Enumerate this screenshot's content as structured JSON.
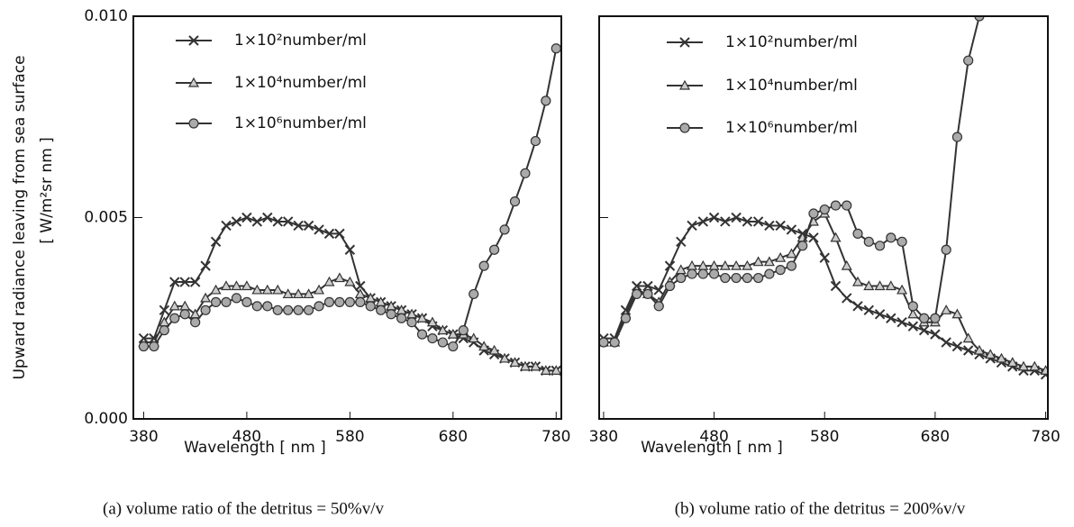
{
  "chart_data": [
    {
      "type": "line",
      "ylabel": "Upward radiance leaving from sea surface",
      "ylabel_unit": "[ W/m²sr nm ]",
      "xlabel": "Wavelength [ nm ]",
      "caption": "(a) volume ratio of the detritus = 50%v/v",
      "x": [
        380,
        390,
        400,
        410,
        420,
        430,
        440,
        450,
        460,
        470,
        480,
        490,
        500,
        510,
        520,
        530,
        540,
        550,
        560,
        570,
        580,
        590,
        600,
        610,
        620,
        630,
        640,
        650,
        660,
        670,
        680,
        690,
        700,
        710,
        720,
        730,
        740,
        750,
        760,
        770,
        780
      ],
      "xlim": [
        370,
        785
      ],
      "xticks": [
        380,
        480,
        580,
        680,
        780
      ],
      "ylim": [
        0,
        0.01
      ],
      "yticks": [
        {
          "value": 0,
          "label": "0.000"
        },
        {
          "value": 0.005,
          "label": "0.005"
        },
        {
          "value": 0.01,
          "label": "0.010"
        }
      ],
      "series": [
        {
          "name": "1×10²number/ml",
          "color": "#333333",
          "marker": "cross",
          "values": [
            0.002,
            0.002,
            0.0027,
            0.0034,
            0.0034,
            0.0034,
            0.0038,
            0.0044,
            0.0048,
            0.0049,
            0.005,
            0.0049,
            0.005,
            0.0049,
            0.0049,
            0.0048,
            0.0048,
            0.0047,
            0.0046,
            0.0046,
            0.0042,
            0.0033,
            0.003,
            0.0029,
            0.0028,
            0.0027,
            0.0026,
            0.0025,
            0.0023,
            0.0022,
            0.0021,
            0.002,
            0.0019,
            0.0017,
            0.0016,
            0.0015,
            0.0014,
            0.0013,
            0.0013,
            0.0012,
            0.0012
          ]
        },
        {
          "name": "1×10⁴number/ml",
          "color": "#333333",
          "marker": "triangle",
          "values": [
            0.0019,
            0.0019,
            0.0024,
            0.0028,
            0.0028,
            0.0026,
            0.003,
            0.0032,
            0.0033,
            0.0033,
            0.0033,
            0.0032,
            0.0032,
            0.0032,
            0.0031,
            0.0031,
            0.0031,
            0.0032,
            0.0034,
            0.0035,
            0.0034,
            0.0031,
            0.003,
            0.0029,
            0.0028,
            0.0027,
            0.0026,
            0.0025,
            0.0024,
            0.0022,
            0.0021,
            0.0021,
            0.002,
            0.0018,
            0.0017,
            0.0015,
            0.0014,
            0.0013,
            0.0013,
            0.0012,
            0.0012
          ]
        },
        {
          "name": "1×10⁶number/ml",
          "color": "#333333",
          "marker": "circle",
          "values": [
            0.0018,
            0.0018,
            0.0022,
            0.0025,
            0.0026,
            0.0024,
            0.0027,
            0.0029,
            0.0029,
            0.003,
            0.0029,
            0.0028,
            0.0028,
            0.0027,
            0.0027,
            0.0027,
            0.0027,
            0.0028,
            0.0029,
            0.0029,
            0.0029,
            0.0029,
            0.0028,
            0.0027,
            0.0026,
            0.0025,
            0.0024,
            0.0021,
            0.002,
            0.0019,
            0.0018,
            0.0022,
            0.0031,
            0.0038,
            0.0042,
            0.0047,
            0.0054,
            0.0061,
            0.0069,
            0.0079,
            0.0092
          ]
        }
      ]
    },
    {
      "type": "line",
      "xlabel": "Wavelength [ nm ]",
      "caption": "(b) volume ratio of the detritus = 200%v/v",
      "x": [
        380,
        390,
        400,
        410,
        420,
        430,
        440,
        450,
        460,
        470,
        480,
        490,
        500,
        510,
        520,
        530,
        540,
        550,
        560,
        570,
        580,
        590,
        600,
        610,
        620,
        630,
        640,
        650,
        660,
        670,
        680,
        690,
        700,
        710,
        720,
        730,
        740,
        750,
        760,
        770,
        780
      ],
      "xlim": [
        376,
        782
      ],
      "xticks": [
        380,
        480,
        580,
        680,
        780
      ],
      "ylim": [
        0,
        0.01
      ],
      "yticks": [
        0,
        0.005,
        0.01
      ],
      "series": [
        {
          "name": "1×10²number/ml",
          "color": "#333333",
          "marker": "cross",
          "values": [
            0.002,
            0.002,
            0.0027,
            0.0033,
            0.0033,
            0.0032,
            0.0038,
            0.0044,
            0.0048,
            0.0049,
            0.005,
            0.0049,
            0.005,
            0.0049,
            0.0049,
            0.0048,
            0.0048,
            0.0047,
            0.0046,
            0.0045,
            0.004,
            0.0033,
            0.003,
            0.0028,
            0.0027,
            0.0026,
            0.0025,
            0.0024,
            0.0023,
            0.0022,
            0.0021,
            0.0019,
            0.0018,
            0.0017,
            0.0016,
            0.0015,
            0.0014,
            0.0013,
            0.0012,
            0.0012,
            0.0011
          ]
        },
        {
          "name": "1×10⁴number/ml",
          "color": "#333333",
          "marker": "triangle",
          "values": [
            0.0019,
            0.0019,
            0.0026,
            0.0032,
            0.0031,
            0.0029,
            0.0034,
            0.0037,
            0.0038,
            0.0038,
            0.0038,
            0.0038,
            0.0038,
            0.0038,
            0.0039,
            0.0039,
            0.004,
            0.0041,
            0.0045,
            0.0049,
            0.0051,
            0.0045,
            0.0038,
            0.0034,
            0.0033,
            0.0033,
            0.0033,
            0.0032,
            0.0026,
            0.0024,
            0.0024,
            0.0027,
            0.0026,
            0.002,
            0.0017,
            0.0016,
            0.0015,
            0.0014,
            0.0013,
            0.0013,
            0.0012
          ]
        },
        {
          "name": "1×10⁶number/ml",
          "color": "#333333",
          "marker": "circle",
          "values": [
            0.0019,
            0.0019,
            0.0025,
            0.0031,
            0.0031,
            0.0028,
            0.0033,
            0.0035,
            0.0036,
            0.0036,
            0.0036,
            0.0035,
            0.0035,
            0.0035,
            0.0035,
            0.0036,
            0.0037,
            0.0038,
            0.0043,
            0.0051,
            0.0052,
            0.0053,
            0.0053,
            0.0046,
            0.0044,
            0.0043,
            0.0045,
            0.0044,
            0.0028,
            0.0025,
            0.0025,
            0.0042,
            0.007,
            0.0089,
            0.01,
            null,
            null,
            null,
            null,
            null,
            null
          ]
        }
      ]
    }
  ]
}
